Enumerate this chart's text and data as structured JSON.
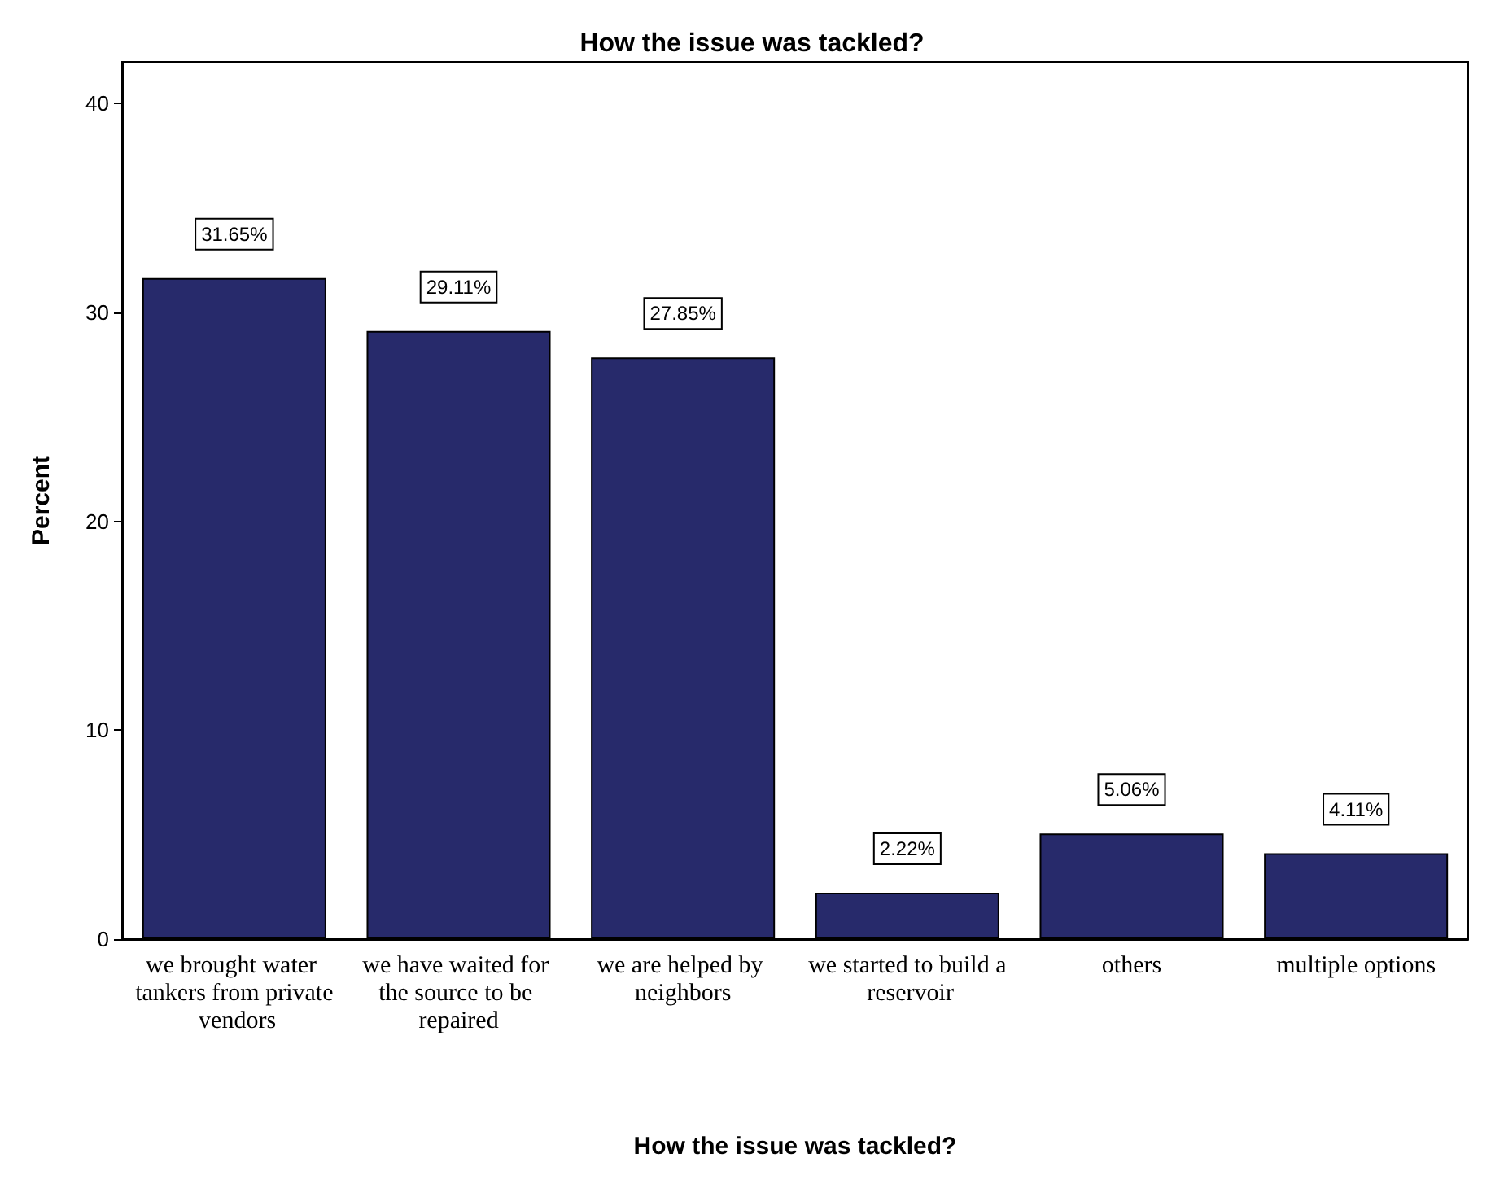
{
  "chart_data": {
    "type": "bar",
    "title": "How the issue was tackled?",
    "xlabel": "How the issue was tackled?",
    "ylabel": "Percent",
    "categories": [
      "we brought water tankers from private vendors",
      "we have waited for the source to be repaired",
      "we are helped by neighbors",
      "we started to build a reservoir",
      "others",
      "multiple options"
    ],
    "values": [
      31.65,
      29.11,
      27.85,
      2.22,
      5.06,
      4.11
    ],
    "value_labels": [
      "31.65%",
      "29.11%",
      "27.85%",
      "2.22%",
      "5.06%",
      "4.11%"
    ],
    "color": "#272a6b",
    "ylim": [
      0,
      42
    ],
    "yticks": [
      0,
      10,
      20,
      30,
      40
    ],
    "grid": false
  }
}
